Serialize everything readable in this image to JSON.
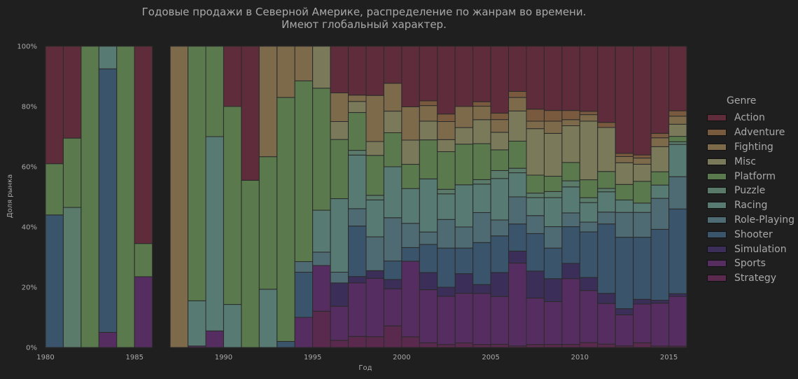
{
  "chart_data": {
    "type": "bar",
    "stacked": true,
    "normalized": true,
    "title": [
      "Годовые продажи в Северной Америке, распределение по жанрам во времени.",
      "Имеют глобальный характер."
    ],
    "xlabel": "Год",
    "ylabel": "Доля рынка",
    "xlim": [
      1980,
      2016
    ],
    "ylim": [
      0,
      100
    ],
    "x_ticks": [
      "1980",
      "1985",
      "1990",
      "1995",
      "2000",
      "2005",
      "2010",
      "2015"
    ],
    "y_ticks": [
      "0%",
      "20%",
      "40%",
      "60%",
      "80%",
      "100%"
    ],
    "legend_title": "Genre",
    "legend_position": "right",
    "grid": false,
    "stack_order": [
      "Strategy",
      "Sports",
      "Simulation",
      "Shooter",
      "Role-Playing",
      "Racing",
      "Puzzle",
      "Platform",
      "Misc",
      "Fighting",
      "Adventure",
      "Action"
    ],
    "genres": [
      "Action",
      "Adventure",
      "Fighting",
      "Misc",
      "Platform",
      "Puzzle",
      "Racing",
      "Role-Playing",
      "Shooter",
      "Simulation",
      "Sports",
      "Strategy"
    ],
    "colors": {
      "Action": "#5f2c3b",
      "Adventure": "#7a5a3e",
      "Fighting": "#7c6a4b",
      "Misc": "#7a7a5a",
      "Platform": "#5a7a4e",
      "Puzzle": "#5a7a6a",
      "Racing": "#577a72",
      "Role-Playing": "#4e6a72",
      "Shooter": "#39546b",
      "Simulation": "#3b2f5a",
      "Sports": "#562d60",
      "Strategy": "#5a2a4e"
    },
    "categories": [
      1980,
      1981,
      1982,
      1983,
      1984,
      1985,
      1986,
      1987,
      1988,
      1989,
      1990,
      1991,
      1992,
      1993,
      1994,
      1995,
      1996,
      1997,
      1998,
      1999,
      2000,
      2001,
      2002,
      2003,
      2004,
      2005,
      2006,
      2007,
      2008,
      2009,
      2010,
      2011,
      2012,
      2013,
      2014,
      2015
    ],
    "series": [
      {
        "name": "Strategy",
        "values": [
          0,
          0,
          0,
          0,
          0,
          0,
          0,
          0,
          0,
          0,
          0,
          0,
          0,
          0,
          0,
          9.5,
          2,
          3.5,
          3.5,
          7,
          3.5,
          1.5,
          1,
          1.5,
          1,
          1,
          0.5,
          1,
          1,
          1,
          1.5,
          1,
          0.5,
          1.5,
          0.5,
          0.5
        ]
      },
      {
        "name": "Sports",
        "values": [
          0,
          0,
          0,
          5,
          0,
          23.5,
          0,
          0,
          0.5,
          5.5,
          0,
          0,
          0,
          0,
          10,
          12,
          9.5,
          17,
          19,
          12,
          25,
          17,
          16,
          16.5,
          17,
          15,
          27.5,
          15.5,
          14,
          21.5,
          16,
          12,
          10,
          12.5,
          14.5,
          18.5
        ]
      },
      {
        "name": "Simulation",
        "values": [
          0,
          0,
          0,
          0,
          0,
          0,
          0,
          0,
          0,
          0,
          0,
          0,
          0,
          0,
          0,
          0,
          6.5,
          2,
          2.5,
          3,
          0,
          5.5,
          3,
          6.5,
          3,
          7.5,
          4,
          9,
          7.5,
          5,
          4,
          3,
          2,
          1.5,
          1,
          1
        ]
      },
      {
        "name": "Shooter",
        "values": [
          44,
          0,
          0,
          87.5,
          0,
          0,
          0,
          0,
          0,
          0,
          0,
          0,
          0,
          2,
          15,
          0,
          0,
          16,
          0,
          6,
          4.5,
          9,
          13,
          8.5,
          14,
          11.5,
          9,
          12.5,
          10,
          12,
          14,
          20.5,
          23,
          20,
          24,
          31.5
        ]
      },
      {
        "name": "Role-Playing",
        "values": [
          0,
          0,
          0,
          0,
          0,
          0,
          0,
          0,
          0,
          0,
          0,
          0,
          0,
          0,
          3.5,
          3.5,
          3,
          5.5,
          11,
          14,
          8,
          4,
          9.5,
          7,
          10,
          5,
          9,
          6,
          7,
          4.5,
          3,
          3.5,
          8,
          8,
          10.5,
          12
        ]
      },
      {
        "name": "Racing",
        "values": [
          0,
          0,
          0,
          7.5,
          0,
          0,
          0,
          0,
          15,
          64.5,
          12.5,
          0,
          14.5,
          0,
          0,
          11,
          20.5,
          17,
          12,
          16.5,
          11.5,
          17,
          8.5,
          14,
          9.5,
          13,
          8,
          6,
          9.5,
          8.5,
          6,
          6,
          4,
          3,
          4.5,
          12
        ]
      },
      {
        "name": "Puzzle",
        "values": [
          0,
          46.5,
          0,
          0,
          0,
          0,
          0,
          0,
          0,
          0,
          0,
          0,
          0,
          0,
          0,
          0,
          0,
          1.5,
          1.5,
          0,
          0,
          0,
          1.5,
          0,
          1.5,
          2.5,
          1.5,
          1.5,
          2,
          2,
          1.5,
          1,
          0,
          0,
          0,
          1
        ]
      },
      {
        "name": "Platform",
        "values": [
          17,
          23,
          100,
          0,
          100,
          11,
          0,
          0,
          84.5,
          30,
          57.5,
          55.5,
          33,
          81,
          60,
          32,
          16.5,
          12,
          13,
          11,
          8,
          12.5,
          12.5,
          13.5,
          12,
          6.5,
          9,
          6,
          5,
          6,
          5.5,
          5,
          5,
          7,
          4.5,
          2
        ]
      },
      {
        "name": "Misc",
        "values": [
          0,
          0,
          0,
          0,
          0,
          0,
          0,
          0,
          0,
          0,
          0,
          0,
          0,
          0,
          0,
          11,
          5,
          3.5,
          4.5,
          7,
          8,
          6,
          4,
          5.5,
          8,
          5.5,
          10,
          15.5,
          14,
          12,
          18,
          13,
          7,
          5.5,
          8.5,
          4.5
        ]
      },
      {
        "name": "Fighting",
        "values": [
          0,
          0,
          0,
          0,
          0,
          0,
          0,
          100,
          0,
          0,
          0,
          0,
          27.5,
          17,
          11.5,
          0,
          8,
          2,
          15,
          9,
          11,
          5,
          6,
          7,
          4.5,
          4,
          4.5,
          2.5,
          4,
          2,
          2,
          0,
          2,
          2,
          3,
          3
        ]
      },
      {
        "name": "Adventure",
        "values": [
          0,
          0,
          0,
          0,
          0,
          0,
          0,
          0,
          0,
          0,
          0,
          0,
          0,
          0,
          0,
          0,
          0,
          0,
          0,
          0,
          0,
          1.5,
          2.5,
          0,
          1.5,
          2,
          2,
          4,
          3.5,
          3,
          1,
          1.5,
          1,
          1,
          1.5,
          2
        ]
      },
      {
        "name": "Action",
        "values": [
          39,
          30.5,
          0,
          0,
          0,
          65.5,
          0,
          0,
          0,
          0,
          17.5,
          44.5,
          0,
          0,
          0,
          0,
          13,
          15.5,
          16,
          12,
          20,
          17.5,
          22.5,
          20,
          18.5,
          21,
          15,
          21,
          21,
          21,
          20,
          22.5,
          34.5,
          35,
          29.5,
          24
        ]
      }
    ]
  }
}
